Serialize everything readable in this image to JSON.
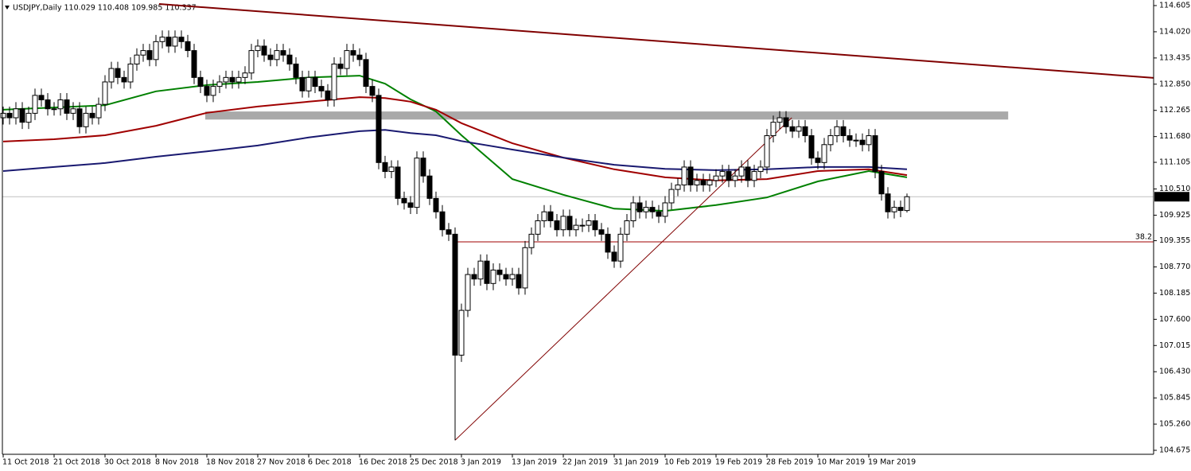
{
  "chart_data": {
    "type": "candlestick",
    "title": "USDJPY,Daily 110.029 110.408 109.985 110.337",
    "categories": [
      "11 Oct 2018",
      null,
      null,
      null,
      null,
      null,
      null,
      null,
      "21 Oct 2018",
      null,
      null,
      null,
      null,
      null,
      null,
      null,
      "30 Oct 2018",
      null,
      null,
      null,
      null,
      null,
      null,
      null,
      "8 Nov 2018",
      null,
      null,
      null,
      null,
      null,
      null,
      null,
      "18 Nov 2018",
      null,
      null,
      null,
      null,
      null,
      null,
      null,
      "27 Nov 2018",
      null,
      null,
      null,
      null,
      null,
      null,
      null,
      "6 Dec 2018",
      null,
      null,
      null,
      null,
      null,
      null,
      null,
      "16 Dec 2018",
      null,
      null,
      null,
      null,
      null,
      null,
      null,
      "25 Dec 2018",
      null,
      null,
      null,
      null,
      null,
      null,
      null,
      "3 Jan 2019",
      null,
      null,
      null,
      null,
      null,
      null,
      null,
      "13 Jan 2019",
      null,
      null,
      null,
      null,
      null,
      null,
      null,
      "22 Jan 2019",
      null,
      null,
      null,
      null,
      null,
      null,
      null,
      "31 Jan 2019",
      null,
      null,
      null,
      null,
      null,
      null,
      null,
      "10 Feb 2019",
      null,
      null,
      null,
      null,
      null,
      null,
      null,
      "19 Feb 2019",
      null,
      null,
      null,
      null,
      null,
      null,
      null,
      "28 Feb 2019",
      null,
      null,
      null,
      null,
      null,
      null,
      null,
      "10 Mar 2019",
      null,
      null,
      null,
      null,
      null,
      null,
      null,
      "19 Mar 2019",
      null,
      null,
      null,
      null,
      null,
      null
    ],
    "open": [
      112.1,
      112.2,
      112.1,
      112.3,
      112.0,
      112.2,
      112.6,
      112.5,
      112.3,
      112.3,
      112.5,
      112.2,
      112.3,
      111.9,
      112.2,
      112.1,
      112.4,
      112.9,
      113.2,
      113.0,
      112.9,
      113.3,
      113.5,
      113.6,
      113.4,
      113.8,
      113.9,
      113.7,
      113.9,
      113.8,
      113.6,
      113.0,
      112.8,
      112.6,
      112.8,
      112.9,
      113.0,
      112.9,
      113.0,
      113.1,
      113.6,
      113.7,
      113.5,
      113.4,
      113.6,
      113.5,
      113.3,
      113.0,
      112.7,
      113.0,
      112.8,
      112.7,
      112.5,
      113.3,
      113.2,
      113.6,
      113.5,
      113.4,
      112.8,
      112.6,
      111.1,
      110.9,
      111.0,
      110.3,
      110.2,
      110.1,
      111.2,
      110.8,
      110.3,
      110.0,
      109.6,
      109.5,
      106.8,
      107.8,
      108.6,
      108.5,
      108.9,
      108.4,
      108.7,
      108.6,
      108.5,
      108.6,
      108.3,
      109.2,
      109.5,
      109.8,
      110.0,
      109.8,
      109.6,
      109.9,
      109.6,
      109.7,
      109.7,
      109.8,
      109.6,
      109.5,
      109.1,
      108.9,
      109.5,
      109.8,
      110.2,
      110.0,
      110.1,
      110.0,
      109.9,
      110.2,
      110.5,
      110.6,
      111.0,
      110.6,
      110.7,
      110.6,
      110.7,
      110.8,
      110.9,
      110.7,
      110.8,
      111.0,
      110.7,
      110.9,
      111.0,
      111.7,
      112.0,
      112.1,
      111.9,
      111.8,
      111.9,
      111.7,
      111.2,
      111.1,
      111.5,
      111.7,
      111.9,
      111.7,
      111.6,
      111.6,
      111.5,
      111.7,
      110.9,
      110.4,
      110.0,
      110.1,
      110.029
    ],
    "high": [
      112.35,
      112.35,
      112.45,
      112.45,
      112.35,
      112.75,
      112.75,
      112.65,
      112.45,
      112.65,
      112.65,
      112.45,
      112.45,
      112.35,
      112.35,
      112.55,
      113.05,
      113.35,
      113.35,
      113.15,
      113.45,
      113.65,
      113.75,
      113.75,
      113.95,
      114.05,
      114.05,
      114.05,
      114.05,
      113.95,
      113.75,
      113.15,
      112.95,
      112.95,
      113.05,
      113.15,
      113.15,
      113.15,
      113.25,
      113.75,
      113.85,
      113.85,
      113.65,
      113.75,
      113.75,
      113.65,
      113.45,
      113.15,
      113.15,
      113.15,
      112.95,
      112.85,
      113.45,
      113.45,
      113.75,
      113.75,
      113.65,
      113.55,
      112.95,
      112.75,
      111.25,
      111.15,
      111.15,
      110.45,
      110.35,
      111.35,
      111.35,
      110.95,
      110.45,
      110.15,
      109.75,
      109.65,
      107.95,
      108.75,
      108.75,
      109.05,
      109.05,
      108.85,
      108.85,
      108.75,
      108.75,
      108.75,
      109.35,
      109.65,
      109.95,
      110.15,
      110.15,
      109.95,
      110.05,
      110.05,
      109.85,
      109.85,
      109.95,
      109.95,
      109.75,
      109.65,
      109.25,
      109.65,
      109.95,
      110.35,
      110.35,
      110.25,
      110.25,
      110.15,
      110.35,
      110.65,
      110.75,
      111.15,
      111.15,
      110.85,
      110.85,
      110.85,
      110.95,
      111.05,
      111.05,
      110.95,
      111.15,
      111.15,
      111.05,
      111.15,
      111.85,
      112.15,
      112.25,
      112.25,
      112.05,
      112.05,
      112.05,
      111.85,
      111.35,
      111.65,
      111.85,
      112.05,
      112.05,
      111.85,
      111.75,
      111.75,
      111.85,
      111.85,
      111.05,
      110.55,
      110.25,
      110.25,
      110.408
    ],
    "low": [
      111.95,
      111.95,
      111.95,
      111.85,
      111.85,
      112.05,
      112.35,
      112.15,
      112.15,
      112.15,
      112.05,
      112.05,
      111.75,
      111.75,
      111.95,
      111.95,
      112.25,
      112.75,
      112.85,
      112.75,
      112.75,
      113.15,
      113.35,
      113.25,
      113.25,
      113.65,
      113.55,
      113.55,
      113.65,
      113.45,
      112.85,
      112.65,
      112.45,
      112.45,
      112.65,
      112.75,
      112.75,
      112.75,
      112.85,
      112.95,
      113.45,
      113.35,
      113.25,
      113.25,
      113.35,
      113.15,
      112.85,
      112.55,
      112.55,
      112.65,
      112.55,
      112.35,
      112.35,
      113.05,
      113.05,
      113.35,
      113.25,
      112.65,
      112.45,
      110.95,
      110.75,
      110.75,
      110.15,
      110.05,
      109.95,
      109.95,
      110.65,
      110.15,
      109.85,
      109.45,
      109.35,
      104.9,
      106.65,
      107.65,
      108.35,
      108.35,
      108.25,
      108.25,
      108.45,
      108.35,
      108.35,
      108.15,
      108.15,
      109.05,
      109.35,
      109.65,
      109.65,
      109.45,
      109.45,
      109.45,
      109.45,
      109.55,
      109.55,
      109.45,
      109.35,
      108.95,
      108.75,
      108.75,
      109.35,
      109.65,
      109.85,
      109.85,
      109.85,
      109.75,
      109.75,
      110.05,
      110.35,
      110.45,
      110.45,
      110.45,
      110.45,
      110.45,
      110.55,
      110.65,
      110.55,
      110.55,
      110.65,
      110.55,
      110.55,
      110.75,
      110.85,
      111.55,
      111.85,
      111.75,
      111.65,
      111.65,
      111.55,
      111.05,
      110.95,
      110.95,
      111.35,
      111.55,
      111.55,
      111.45,
      111.45,
      111.35,
      111.35,
      110.75,
      110.25,
      109.85,
      109.85,
      109.88,
      109.985
    ],
    "close": [
      112.2,
      112.1,
      112.3,
      112.0,
      112.2,
      112.6,
      112.5,
      112.3,
      112.3,
      112.5,
      112.2,
      112.3,
      111.9,
      112.2,
      112.1,
      112.4,
      112.9,
      113.2,
      113.0,
      112.9,
      113.3,
      113.5,
      113.6,
      113.4,
      113.8,
      113.9,
      113.7,
      113.9,
      113.8,
      113.6,
      113.0,
      112.8,
      112.6,
      112.8,
      112.9,
      113.0,
      112.9,
      113.0,
      113.1,
      113.6,
      113.7,
      113.5,
      113.4,
      113.6,
      113.5,
      113.3,
      113.0,
      112.7,
      113.0,
      112.8,
      112.7,
      112.5,
      113.3,
      113.2,
      113.6,
      113.5,
      113.4,
      112.8,
      112.6,
      111.1,
      110.9,
      111.0,
      110.3,
      110.2,
      110.1,
      111.2,
      110.8,
      110.3,
      110.0,
      109.6,
      109.5,
      106.8,
      107.8,
      108.6,
      108.5,
      108.9,
      108.4,
      108.7,
      108.6,
      108.5,
      108.6,
      108.3,
      109.2,
      109.5,
      109.8,
      110.0,
      109.8,
      109.6,
      109.9,
      109.6,
      109.7,
      109.7,
      109.8,
      109.6,
      109.5,
      109.1,
      108.9,
      109.5,
      109.8,
      110.2,
      110.0,
      110.1,
      110.0,
      109.9,
      110.2,
      110.5,
      110.6,
      111.0,
      110.6,
      110.7,
      110.6,
      110.7,
      110.8,
      110.9,
      110.7,
      110.8,
      111.0,
      110.7,
      110.9,
      111.0,
      111.7,
      112.0,
      112.1,
      111.9,
      111.8,
      111.9,
      111.7,
      111.2,
      111.1,
      111.5,
      111.7,
      111.9,
      111.7,
      111.6,
      111.6,
      111.5,
      111.7,
      110.9,
      110.4,
      110.0,
      110.1,
      110.029,
      110.337
    ],
    "up_color": "#ffffff",
    "down_color": "#000000",
    "ylim": [
      104.675,
      114.605
    ],
    "yticks": [
      114.605,
      {
        "value": 114.02,
        "label": "114.020"
      },
      113.435,
      {
        "value": 112.85,
        "label": "112.850"
      },
      112.265,
      {
        "value": 111.68,
        "label": "111.680"
      },
      111.105,
      {
        "value": 110.51,
        "label": "110.510"
      },
      109.925,
      109.355,
      {
        "value": 108.77,
        "label": "108.770"
      },
      108.185,
      {
        "value": 107.6,
        "label": "107.600"
      },
      107.015,
      {
        "value": 106.43,
        "label": "106.430"
      },
      105.845,
      {
        "value": 105.26,
        "label": "105.260"
      },
      104.675
    ],
    "last_price": 110.337,
    "series": [
      {
        "color": "#008000",
        "x": [
          0,
          8,
          16,
          24,
          32,
          40,
          48,
          56,
          60,
          64,
          68,
          72,
          80,
          88,
          96,
          104,
          112,
          120,
          128,
          136,
          142
        ],
        "values": [
          112.28,
          112.33,
          112.38,
          112.69,
          112.83,
          112.9,
          113.0,
          113.04,
          112.86,
          112.51,
          112.24,
          111.71,
          110.73,
          110.38,
          110.07,
          110.02,
          110.15,
          110.32,
          110.68,
          110.91,
          110.77
        ]
      },
      {
        "color": "#a00000",
        "x": [
          0,
          8,
          16,
          24,
          32,
          40,
          48,
          56,
          60,
          64,
          68,
          72,
          80,
          88,
          96,
          104,
          112,
          120,
          128,
          136,
          142
        ],
        "values": [
          111.57,
          111.62,
          111.71,
          111.92,
          112.21,
          112.35,
          112.46,
          112.56,
          112.54,
          112.46,
          112.28,
          111.98,
          111.53,
          111.21,
          110.95,
          110.77,
          110.7,
          110.73,
          110.91,
          110.95,
          110.82
        ]
      },
      {
        "color": "#191970",
        "x": [
          0,
          8,
          16,
          24,
          32,
          40,
          48,
          56,
          60,
          64,
          68,
          72,
          80,
          88,
          96,
          104,
          112,
          120,
          128,
          136,
          142
        ],
        "values": [
          110.91,
          111.0,
          111.09,
          111.23,
          111.35,
          111.48,
          111.66,
          111.8,
          111.83,
          111.76,
          111.71,
          111.58,
          111.39,
          111.21,
          111.05,
          110.96,
          110.93,
          110.95,
          111.0,
          111.0,
          110.95
        ]
      }
    ],
    "trendlines": [
      {
        "color": "#800000",
        "x": [
          24.5,
          180.75
        ],
        "values": [
          114.64,
          112.99
        ]
      },
      {
        "color": "#800000",
        "x": [
          71,
          123.9
        ],
        "values": [
          104.9,
          112.1
        ]
      }
    ],
    "zone": {
      "color": "#a9a9a9",
      "x": [
        31.75,
        157.9
      ],
      "values": [
        112.06,
        112.24
      ]
    },
    "fib": {
      "label": "38.2",
      "value": 109.33,
      "color": "#a00000",
      "x": [
        71,
        180.75
      ]
    }
  }
}
